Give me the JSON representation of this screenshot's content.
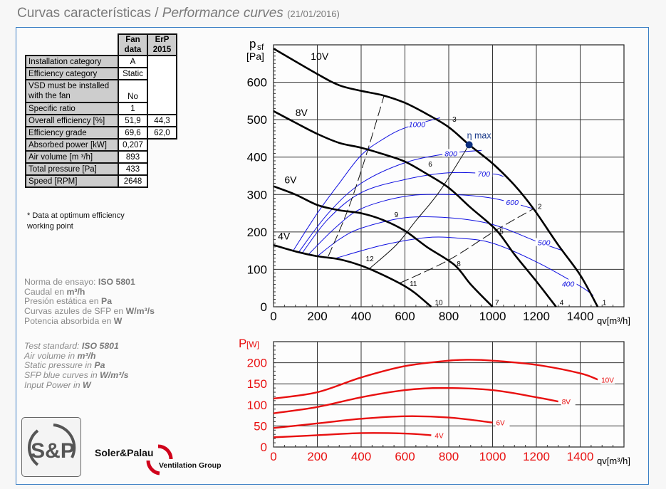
{
  "header": {
    "title_es": "Curvas características",
    "separator": " / ",
    "title_en": "Performance curves",
    "date": "(21/01/2016)"
  },
  "table": {
    "col_fan": "Fan data",
    "col_fan_1": "Fan",
    "col_fan_2": "data",
    "col_erp_1": "ErP",
    "col_erp_2": "2015",
    "rows": [
      {
        "label": "Installation category",
        "fan": "A",
        "erp": ""
      },
      {
        "label": "Efficiency category",
        "fan": "Static",
        "erp": ""
      },
      {
        "label": "VSD must be installed with the fan",
        "fan": "No",
        "erp": ""
      },
      {
        "label": "Specific ratio",
        "fan": "1",
        "erp": ""
      },
      {
        "label": "Overall efficiency [%]",
        "fan": "51,9",
        "erp": "44,3"
      },
      {
        "label": "Efficiency grade",
        "fan": "69,6",
        "erp": "62,0"
      },
      {
        "label": "Absorbed power [kW]",
        "fan": "0,207"
      },
      {
        "label": "Air volume [m ³/h]",
        "fan": "893"
      },
      {
        "label": "Total pressure [Pa]",
        "fan": "433"
      },
      {
        "label": "Speed [RPM]",
        "fan": "2648"
      }
    ],
    "note_1": "* Data at optimum efficiency",
    "note_2": "working point"
  },
  "info_es": [
    {
      "t": "Norma de ensayo: ",
      "b": "ISO 5801"
    },
    {
      "t": "Caudal en ",
      "b": "m³/h"
    },
    {
      "t": "Presión estática en ",
      "b": "Pa"
    },
    {
      "t": "Curvas azules de SFP en ",
      "b": "W/m³/s"
    },
    {
      "t": "Potencia absorbida en ",
      "b": "W"
    }
  ],
  "info_en": [
    {
      "t": "Test standard: ",
      "b": "ISO 5801"
    },
    {
      "t": "Air volume in ",
      "b": "m³/h"
    },
    {
      "t": "Static pressure in ",
      "b": "Pa"
    },
    {
      "t": "SFP blue curves in ",
      "b": "W/m³/s"
    },
    {
      "t": "Input Power in ",
      "b": "W"
    }
  ],
  "logos": {
    "sp_mark": "S&P",
    "brand": "Soler&Palau",
    "group": "Ventilation Group"
  },
  "colors": {
    "frame": "#3b7fc4",
    "pressure_curves": "#000000",
    "sfp_curves": "#1010e0",
    "power_curves": "#e81010",
    "eta_point": "#0b2f7f"
  },
  "chart_data": [
    {
      "type": "line",
      "xlabel": "qv[m³/h]",
      "ylabel_main": "p",
      "ylabel_sub": "sf",
      "ylabel_unit": "[Pa]",
      "xlim": [
        0,
        1600
      ],
      "ylim": [
        0,
        700
      ],
      "xticks": [
        0,
        200,
        400,
        600,
        800,
        1000,
        1200,
        1400
      ],
      "yticks": [
        0,
        100,
        200,
        300,
        400,
        500,
        600
      ],
      "grid": true,
      "series": [
        {
          "name": "10V",
          "label_at": [
            170,
            660
          ],
          "points": [
            [
              0,
              690
            ],
            [
              200,
              622
            ],
            [
              300,
              592
            ],
            [
              400,
              577
            ],
            [
              500,
              565
            ],
            [
              600,
              545
            ],
            [
              700,
              515
            ],
            [
              800,
              480
            ],
            [
              893,
              433
            ],
            [
              1000,
              383
            ],
            [
              1100,
              325
            ],
            [
              1187,
              262
            ],
            [
              1300,
              165
            ],
            [
              1400,
              85
            ],
            [
              1480,
              0
            ]
          ]
        },
        {
          "name": "8V",
          "label_at": [
            100,
            510
          ],
          "points": [
            [
              0,
              523
            ],
            [
              100,
              492
            ],
            [
              200,
              462
            ],
            [
              300,
              438
            ],
            [
              400,
              425
            ],
            [
              500,
              408
            ],
            [
              600,
              388
            ],
            [
              700,
              355
            ],
            [
              800,
              318
            ],
            [
              900,
              265
            ],
            [
              1017,
              205
            ],
            [
              1100,
              140
            ],
            [
              1200,
              68
            ],
            [
              1290,
              0
            ]
          ]
        },
        {
          "name": "6V",
          "label_at": [
            50,
            330
          ],
          "points": [
            [
              0,
              322
            ],
            [
              100,
              300
            ],
            [
              200,
              272
            ],
            [
              300,
              258
            ],
            [
              400,
              250
            ],
            [
              500,
              232
            ],
            [
              600,
              203
            ],
            [
              700,
              160
            ],
            [
              826,
              112
            ],
            [
              900,
              60
            ],
            [
              1000,
              0
            ]
          ]
        },
        {
          "name": "4V",
          "label_at": [
            20,
            180
          ],
          "points": [
            [
              0,
              165
            ],
            [
              100,
              148
            ],
            [
              200,
              135
            ],
            [
              300,
              127
            ],
            [
              400,
              110
            ],
            [
              500,
              85
            ],
            [
              600,
              55
            ],
            [
              650,
              35
            ],
            [
              720,
              0
            ]
          ]
        }
      ],
      "sfp_curves": [
        {
          "name": "1000",
          "label_at": [
            655,
            488
          ],
          "points": [
            [
              90,
              150
            ],
            [
              200,
              250
            ],
            [
              300,
              330
            ],
            [
              400,
              405
            ],
            [
              500,
              448
            ],
            [
              600,
              478
            ],
            [
              760,
              505
            ]
          ]
        },
        {
          "name": "800",
          "label_at": [
            810,
            410
          ],
          "points": [
            [
              115,
              146
            ],
            [
              250,
              250
            ],
            [
              400,
              330
            ],
            [
              600,
              385
            ],
            [
              800,
              410
            ],
            [
              950,
              418
            ]
          ]
        },
        {
          "name": "700",
          "label_at": [
            960,
            356
          ],
          "points": [
            [
              130,
              143
            ],
            [
              250,
              235
            ],
            [
              400,
              305
            ],
            [
              600,
              340
            ],
            [
              800,
              358
            ],
            [
              1000,
              355
            ],
            [
              1050,
              348
            ]
          ]
        },
        {
          "name": "600",
          "label_at": [
            1090,
            280
          ],
          "points": [
            [
              160,
              140
            ],
            [
              280,
              210
            ],
            [
              400,
              262
            ],
            [
              600,
              295
            ],
            [
              800,
              300
            ],
            [
              1000,
              290
            ],
            [
              1187,
              262
            ]
          ]
        },
        {
          "name": "500",
          "label_at": [
            1235,
            172
          ],
          "points": [
            [
              200,
              135
            ],
            [
              300,
              180
            ],
            [
              400,
              210
            ],
            [
              600,
              238
            ],
            [
              800,
              238
            ],
            [
              1000,
              220
            ],
            [
              1200,
              175
            ],
            [
              1320,
              150
            ]
          ]
        },
        {
          "name": "400",
          "label_at": [
            1345,
            62
          ],
          "points": [
            [
              285,
              130
            ],
            [
              500,
              165
            ],
            [
              700,
              185
            ],
            [
              850,
              183
            ],
            [
              1000,
              170
            ],
            [
              1200,
              120
            ],
            [
              1400,
              55
            ],
            [
              1460,
              30
            ]
          ]
        }
      ],
      "system_lines": [
        {
          "style": "dashed",
          "points": [
            [
              250,
              135
            ],
            [
              340,
              260
            ],
            [
              420,
              400
            ],
            [
              505,
              565
            ]
          ]
        },
        {
          "style": "dashed",
          "points": [
            [
              575,
              63
            ],
            [
              800,
              125
            ],
            [
              1017,
              205
            ],
            [
              1187,
              262
            ]
          ]
        },
        {
          "style": "solid",
          "points": [
            [
              440,
              103
            ],
            [
              560,
              165
            ],
            [
              650,
              230
            ],
            [
              760,
              310
            ],
            [
              893,
              433
            ]
          ]
        }
      ],
      "point_labels": [
        {
          "t": "1",
          "at": [
            1495,
            5
          ]
        },
        {
          "t": "2",
          "at": [
            1200,
            262
          ]
        },
        {
          "t": "3",
          "at": [
            810,
            495
          ]
        },
        {
          "t": "4",
          "at": [
            1300,
            5
          ]
        },
        {
          "t": "5",
          "at": [
            1025,
            195
          ]
        },
        {
          "t": "6",
          "at": [
            700,
            375
          ]
        },
        {
          "t": "7",
          "at": [
            1005,
            5
          ]
        },
        {
          "t": "8",
          "at": [
            830,
            108
          ]
        },
        {
          "t": "9",
          "at": [
            545,
            240
          ]
        },
        {
          "t": "10",
          "at": [
            730,
            5
          ]
        },
        {
          "t": "11",
          "at": [
            615,
            55
          ]
        },
        {
          "t": "12",
          "at": [
            415,
            122
          ]
        }
      ],
      "eta_max": {
        "label": "η max",
        "q": 893,
        "p": 433
      }
    },
    {
      "type": "line",
      "xlabel": "qv[m³/h]",
      "ylabel_main": "P",
      "ylabel_unit": "[W]",
      "xlim": [
        0,
        1600
      ],
      "ylim": [
        0,
        250
      ],
      "xticks": [
        0,
        200,
        400,
        600,
        800,
        1000,
        1200,
        1400
      ],
      "yticks": [
        0,
        50,
        100,
        150,
        200
      ],
      "grid": true,
      "series": [
        {
          "name": "10V",
          "points": [
            [
              0,
              115
            ],
            [
              200,
              130
            ],
            [
              400,
              165
            ],
            [
              600,
              192
            ],
            [
              800,
              205
            ],
            [
              900,
              207
            ],
            [
              1000,
              205
            ],
            [
              1200,
              195
            ],
            [
              1400,
              175
            ],
            [
              1480,
              160
            ]
          ]
        },
        {
          "name": "8V",
          "points": [
            [
              0,
              80
            ],
            [
              200,
              95
            ],
            [
              400,
              118
            ],
            [
              600,
              135
            ],
            [
              770,
              140
            ],
            [
              1000,
              135
            ],
            [
              1200,
              118
            ],
            [
              1300,
              108
            ]
          ]
        },
        {
          "name": "6V",
          "points": [
            [
              0,
              45
            ],
            [
              200,
              56
            ],
            [
              400,
              67
            ],
            [
              600,
              73
            ],
            [
              800,
              70
            ],
            [
              1000,
              58
            ]
          ]
        },
        {
          "name": "4V",
          "points": [
            [
              0,
              23
            ],
            [
              200,
              28
            ],
            [
              400,
              33
            ],
            [
              600,
              32
            ],
            [
              720,
              28
            ]
          ]
        }
      ]
    }
  ]
}
